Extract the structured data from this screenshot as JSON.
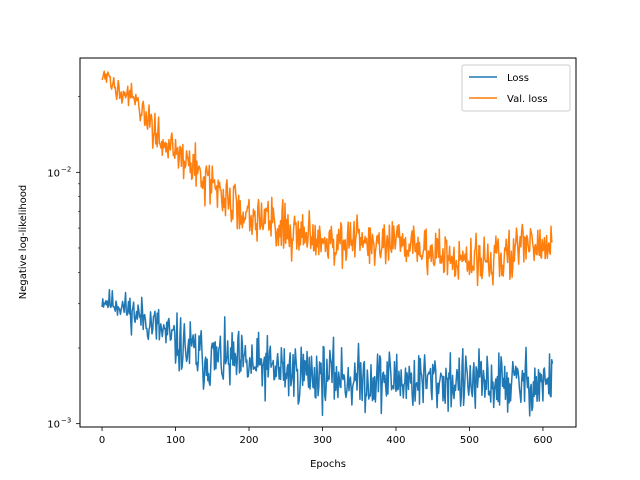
{
  "chart_data": {
    "type": "line",
    "title": "",
    "xlabel": "Epochs",
    "ylabel": "Negative log-likelihood",
    "xlim": [
      -30,
      645
    ],
    "ylim": [
      0.00097,
      0.0285
    ],
    "yscale": "log",
    "xticks": [
      0,
      100,
      200,
      300,
      400,
      500,
      600
    ],
    "xtick_labels": [
      "0",
      "100",
      "200",
      "300",
      "400",
      "500",
      "600"
    ],
    "yticks": [
      0.001,
      0.01
    ],
    "ytick_labels": [
      {
        "base": "10",
        "exp": "−3"
      },
      {
        "base": "10",
        "exp": "−2"
      }
    ],
    "grid": false,
    "legend": "top-right",
    "series": [
      {
        "name": "Loss",
        "color": "#1f77b4",
        "x": [
          0,
          20,
          40,
          60,
          80,
          100,
          120,
          140,
          160,
          180,
          200,
          220,
          240,
          260,
          280,
          300,
          320,
          340,
          360,
          380,
          400,
          420,
          440,
          460,
          480,
          500,
          520,
          540,
          560,
          580,
          600,
          613
        ],
        "y": [
          0.0031,
          0.003,
          0.0028,
          0.0026,
          0.00235,
          0.0021,
          0.00195,
          0.0018,
          0.0018,
          0.00175,
          0.0017,
          0.00168,
          0.00165,
          0.0016,
          0.0016,
          0.00155,
          0.00155,
          0.0015,
          0.0015,
          0.0015,
          0.0015,
          0.00148,
          0.00148,
          0.00148,
          0.00147,
          0.00145,
          0.00145,
          0.00145,
          0.00145,
          0.00145,
          0.00145,
          0.00145
        ],
        "noise": 0.28
      },
      {
        "name": "Val. loss",
        "color": "#ff7f0e",
        "x": [
          0,
          10,
          30,
          50,
          70,
          90,
          110,
          130,
          150,
          170,
          190,
          210,
          230,
          250,
          270,
          300,
          330,
          360,
          390,
          420,
          450,
          480,
          500,
          520,
          540,
          560,
          580,
          600,
          613
        ],
        "y": [
          0.024,
          0.023,
          0.021,
          0.018,
          0.015,
          0.0128,
          0.0112,
          0.0103,
          0.0088,
          0.0077,
          0.0072,
          0.0068,
          0.0063,
          0.006,
          0.0058,
          0.0055,
          0.0053,
          0.0052,
          0.0051,
          0.0052,
          0.0048,
          0.0045,
          0.0043,
          0.0045,
          0.0047,
          0.0049,
          0.005,
          0.005,
          0.0052
        ],
        "noise": 0.22
      }
    ]
  }
}
